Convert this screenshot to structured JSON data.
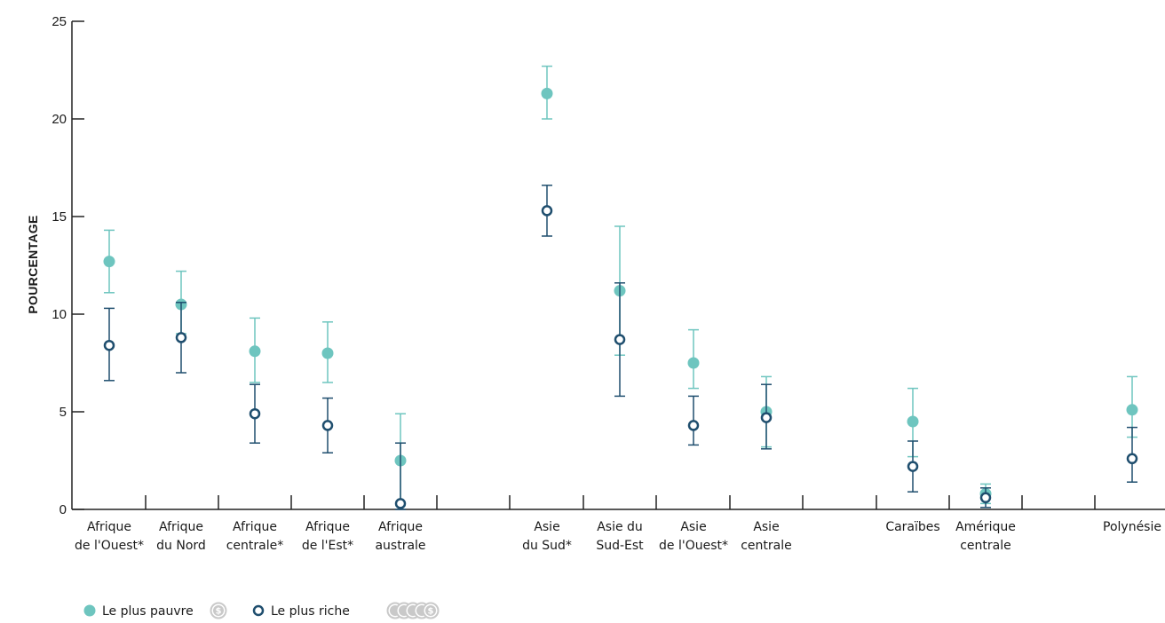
{
  "chart_data": {
    "type": "scatter",
    "ylabel": "POURCENTAGE",
    "xlabel": "",
    "ylim": [
      0,
      25
    ],
    "yticks": [
      0,
      5,
      10,
      15,
      20,
      25
    ],
    "grid": false,
    "legend_position": "bottom-left",
    "colors": {
      "poorest": "#6ec5bf",
      "richest": "#1f4e6e"
    },
    "categories": [
      {
        "label": [
          "Afrique",
          "de l'Ouest*"
        ]
      },
      {
        "label": [
          "Afrique",
          "du Nord"
        ]
      },
      {
        "label": [
          "Afrique",
          "centrale*"
        ]
      },
      {
        "label": [
          "Afrique",
          "de l'Est*"
        ]
      },
      {
        "label": [
          "Afrique",
          "australe"
        ]
      },
      {
        "label": [
          "Asie",
          "du Sud*"
        ]
      },
      {
        "label": [
          "Asie du",
          "Sud-Est"
        ]
      },
      {
        "label": [
          "Asie",
          "de l'Ouest*"
        ]
      },
      {
        "label": [
          "Asie",
          "centrale"
        ]
      },
      {
        "label": [
          "Caraïbes"
        ]
      },
      {
        "label": [
          "Amérique",
          "centrale"
        ]
      },
      {
        "label": [
          "Polynésie"
        ]
      }
    ],
    "series": [
      {
        "name": "Le plus pauvre",
        "key": "poorest",
        "marker": "filled-circle",
        "values": [
          12.7,
          10.5,
          8.1,
          8.0,
          2.5,
          21.3,
          11.2,
          7.5,
          5.0,
          4.5,
          0.8,
          5.1
        ],
        "err_low": [
          11.1,
          9.0,
          6.5,
          6.5,
          0.2,
          20.0,
          7.9,
          6.2,
          3.2,
          2.7,
          0.3,
          3.7
        ],
        "err_high": [
          14.3,
          12.2,
          9.8,
          9.6,
          4.9,
          22.7,
          14.5,
          9.2,
          6.8,
          6.2,
          1.3,
          6.8
        ]
      },
      {
        "name": "Le plus riche",
        "key": "richest",
        "marker": "open-circle",
        "values": [
          8.4,
          8.8,
          4.9,
          4.3,
          0.3,
          15.3,
          8.7,
          4.3,
          4.7,
          2.2,
          0.6,
          2.6
        ],
        "err_low": [
          6.6,
          7.0,
          3.4,
          2.9,
          0.0,
          14.0,
          5.8,
          3.3,
          3.1,
          0.9,
          0.1,
          1.4
        ],
        "err_high": [
          10.3,
          10.6,
          6.4,
          5.7,
          3.4,
          16.6,
          11.6,
          5.8,
          6.4,
          3.5,
          1.1,
          4.2
        ]
      }
    ]
  },
  "legend": {
    "items": [
      {
        "label": "Le plus pauvre",
        "coin_icon": "single-coin-icon"
      },
      {
        "label": "Le plus riche",
        "coin_icon": "coin-stack-icon"
      }
    ],
    "coin_symbol": "$",
    "coin_color": "#c9c9c9"
  }
}
